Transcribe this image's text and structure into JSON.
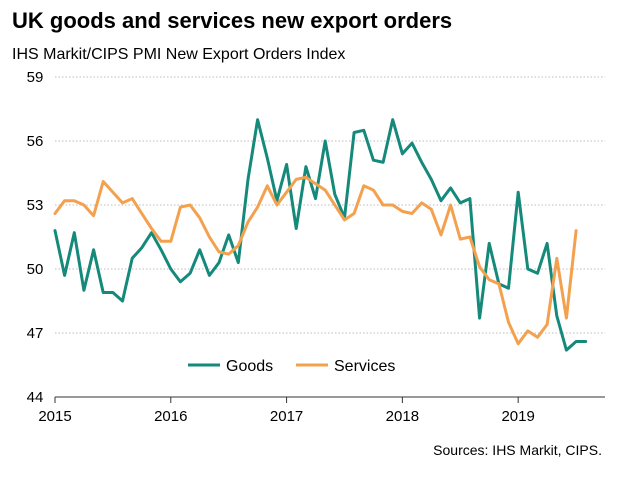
{
  "title": "UK goods and services new export orders",
  "subtitle": "IHS Markit/CIPS PMI New Export Orders Index",
  "source": "Sources: IHS Markit, CIPS.",
  "colors": {
    "goods": "#15897a",
    "services": "#f3a14f",
    "grid": "#bdbdbd",
    "axis": "#333333"
  },
  "chart_data": {
    "type": "line",
    "title": "UK goods and services new export orders",
    "subtitle": "IHS Markit/CIPS PMI New Export Orders Index",
    "xlim": [
      2015.0,
      2019.75
    ],
    "ylim": [
      44,
      59
    ],
    "y_ticks": [
      44,
      47,
      50,
      53,
      56,
      59
    ],
    "y_tick_labels": [
      "44",
      "47",
      "50",
      "53",
      "56",
      "59"
    ],
    "x_ticks": [
      2015,
      2016,
      2017,
      2018,
      2019
    ],
    "x_tick_labels": [
      "2015",
      "2016",
      "2017",
      "2018",
      "2019"
    ],
    "grid": true,
    "legend_position": "bottom-center",
    "frequency": "monthly",
    "start": "2015-01",
    "series": [
      {
        "name": "Goods",
        "values": [
          51.8,
          49.7,
          51.7,
          49.0,
          50.9,
          48.9,
          48.9,
          48.5,
          50.5,
          51.0,
          51.7,
          50.9,
          50.0,
          49.4,
          49.8,
          50.9,
          49.7,
          50.3,
          51.6,
          50.3,
          54.2,
          57.0,
          55.2,
          53.2,
          54.9,
          51.9,
          54.8,
          53.3,
          56.0,
          53.5,
          52.4,
          56.4,
          56.5,
          55.1,
          55.0,
          57.0,
          55.4,
          55.9,
          55.0,
          54.2,
          53.2,
          53.8,
          53.1,
          53.3,
          47.7,
          51.2,
          49.3,
          49.1,
          53.6,
          50.0,
          49.8,
          51.2,
          47.8,
          46.2,
          46.6,
          46.6
        ]
      },
      {
        "name": "Services",
        "values": [
          52.6,
          53.2,
          53.2,
          53.0,
          52.5,
          54.1,
          53.6,
          53.1,
          53.3,
          52.6,
          51.9,
          51.3,
          51.3,
          52.9,
          53.0,
          52.4,
          51.5,
          50.8,
          50.7,
          51.1,
          52.2,
          52.9,
          53.9,
          53.0,
          53.6,
          54.2,
          54.3,
          54.0,
          53.7,
          53.0,
          52.3,
          52.6,
          53.9,
          53.7,
          53.0,
          53.0,
          52.7,
          52.6,
          53.1,
          52.8,
          51.6,
          53.0,
          51.4,
          51.5,
          50.1,
          49.5,
          49.3,
          47.5,
          46.5,
          47.1,
          46.8,
          47.4,
          50.5,
          47.7,
          51.8
        ]
      }
    ]
  }
}
